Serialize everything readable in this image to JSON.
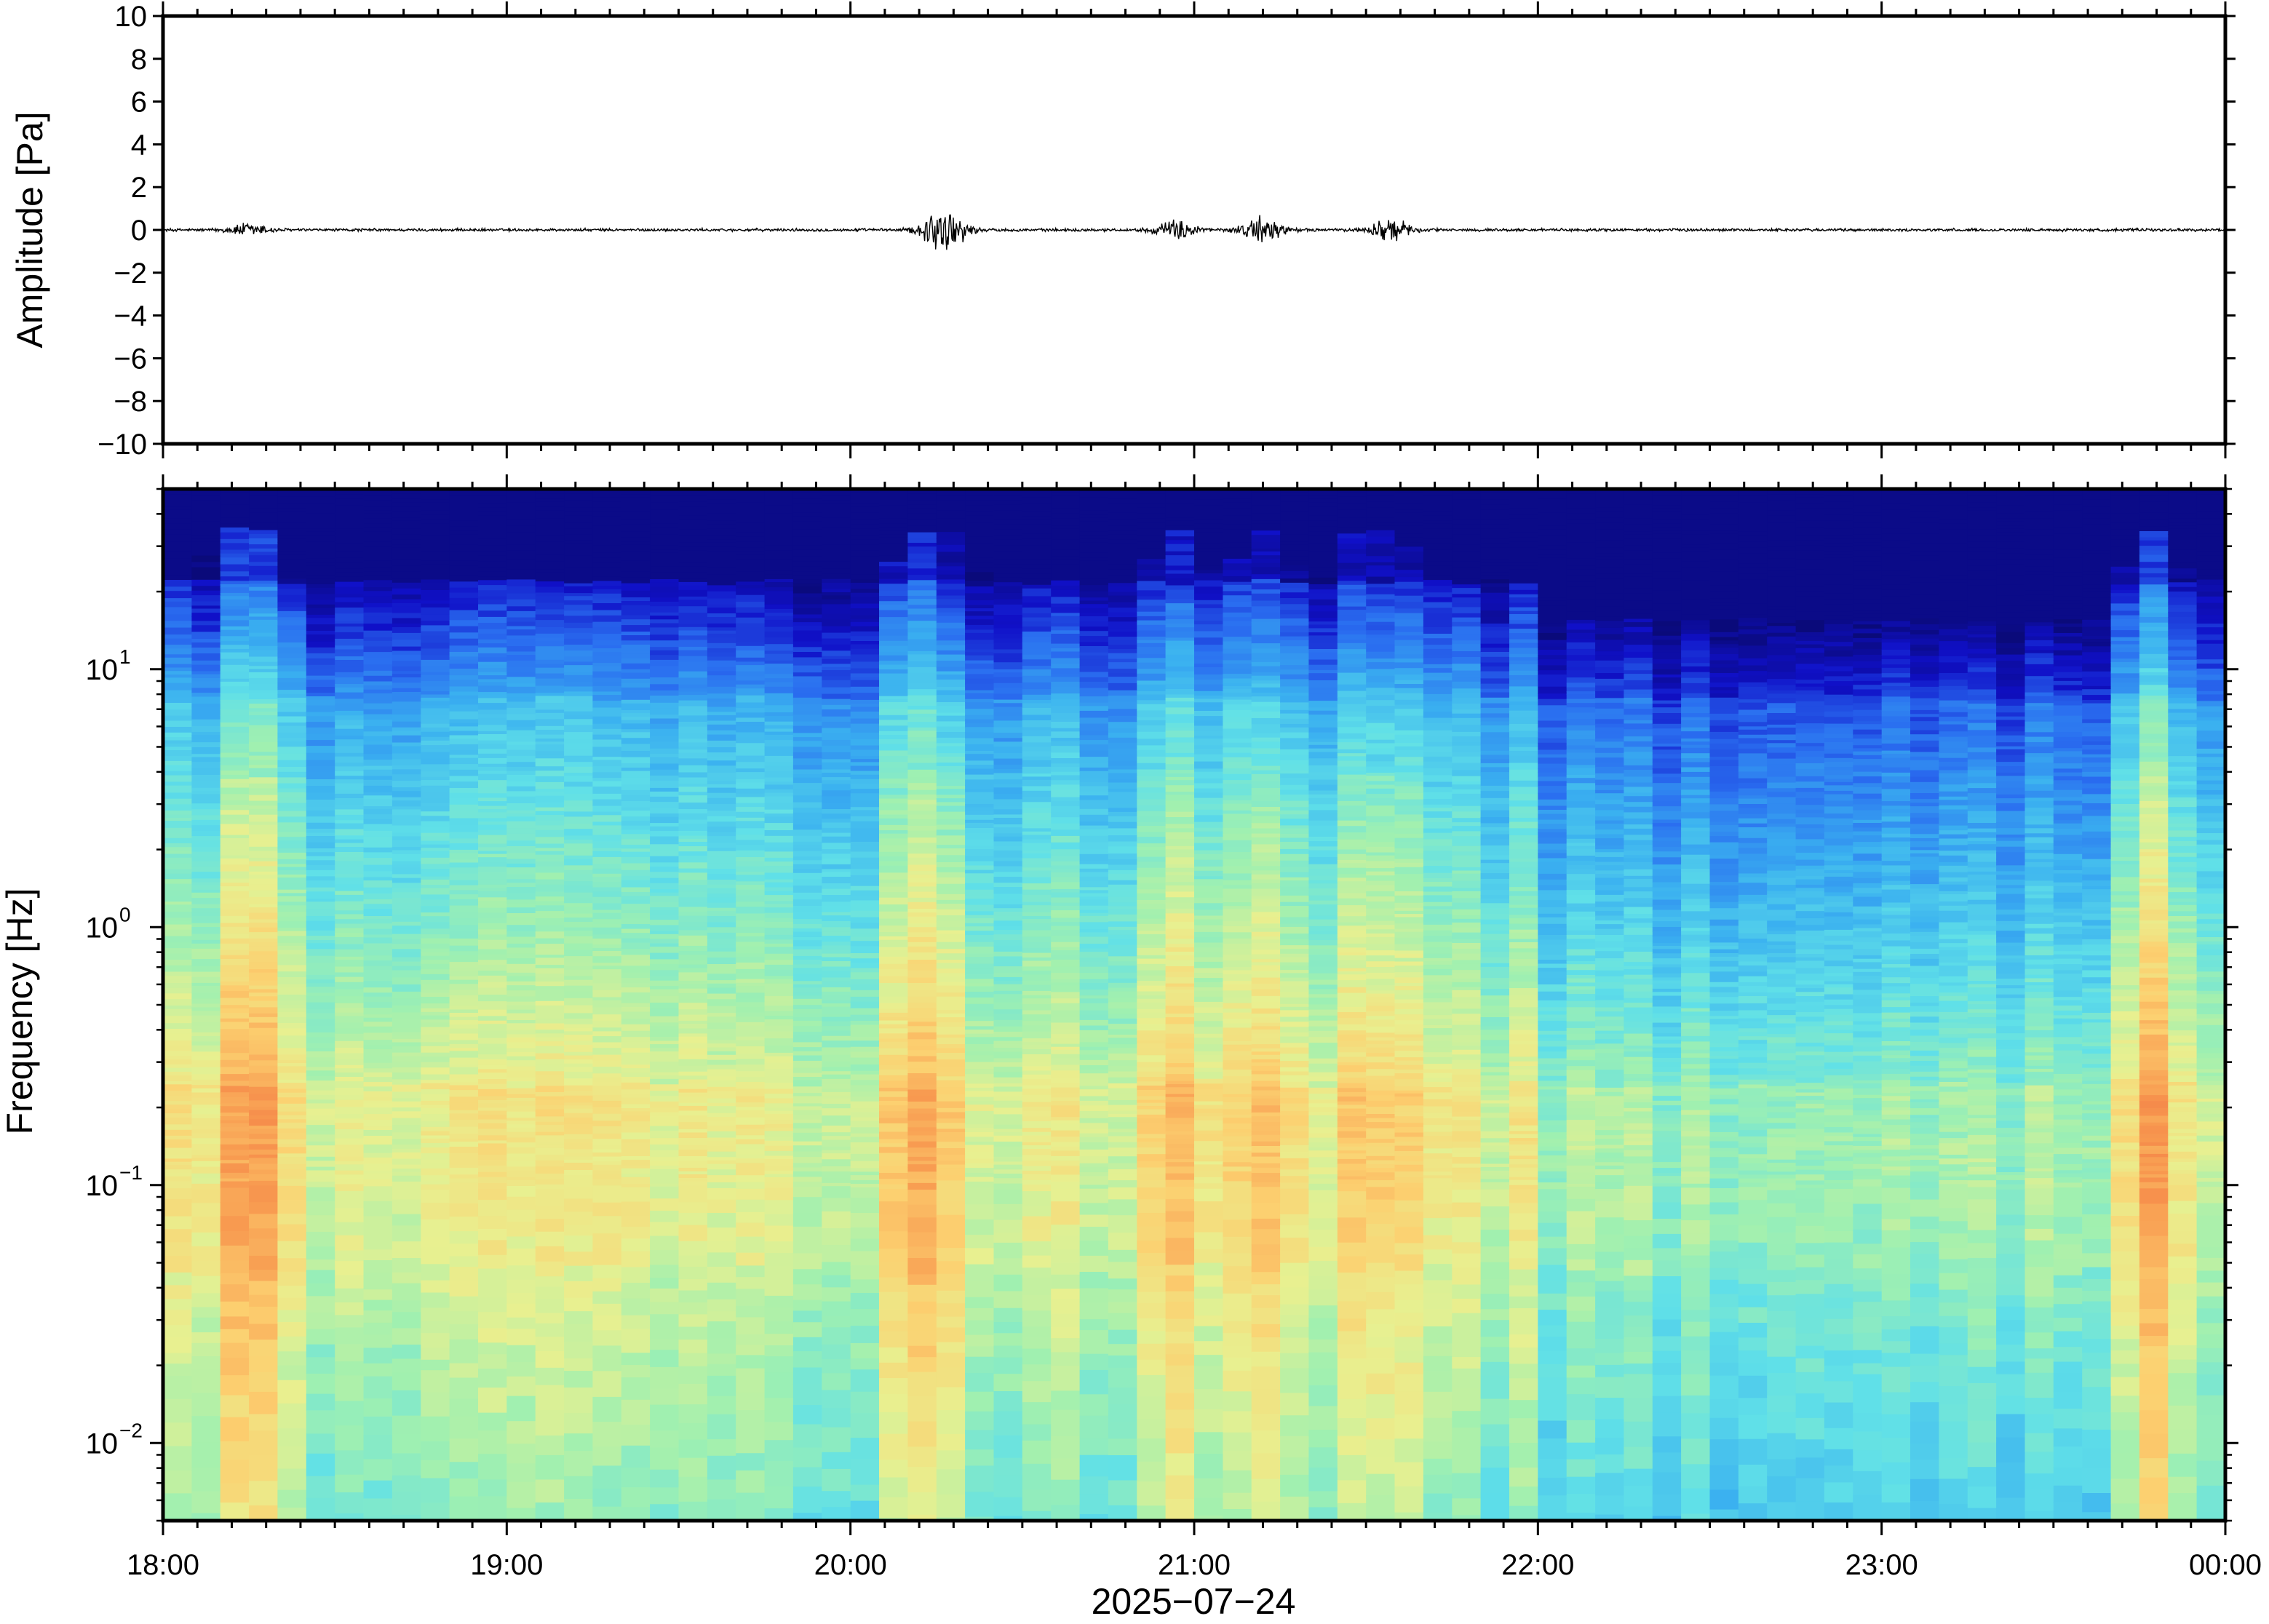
{
  "chart_data": [
    {
      "type": "line",
      "ylabel": "Amplitude [Pa]",
      "ylim": [
        -10,
        10
      ],
      "yticks": [
        10,
        8,
        6,
        4,
        2,
        0,
        -2,
        -4,
        -6,
        -8,
        -10
      ],
      "ytick_labels": [
        "10",
        "8",
        "6",
        "4",
        "2",
        "0",
        "−2",
        "−4",
        "−6",
        "−8",
        "−10"
      ],
      "xlim": [
        "18:00",
        "00:00"
      ],
      "series_color": "#000000",
      "bursts": [
        {
          "t_hours": 0.25,
          "peak": 0.35
        },
        {
          "t_hours": 2.27,
          "peak": 1.3
        },
        {
          "t_hours": 2.95,
          "peak": 0.5
        },
        {
          "t_hours": 3.2,
          "peak": 0.7
        },
        {
          "t_hours": 3.57,
          "peak": 0.6
        }
      ],
      "baseline_noise": 0.08
    },
    {
      "type": "heatmap",
      "ylabel": "Frequency [Hz]",
      "yscale": "log",
      "ylim": [
        0.005,
        50
      ],
      "ytick_labels": [
        {
          "base": "10",
          "exp": "1",
          "value": 10
        },
        {
          "base": "10",
          "exp": "0",
          "value": 1
        },
        {
          "base": "10",
          "exp": "−1",
          "value": 0.1
        },
        {
          "base": "10",
          "exp": "−2",
          "value": 0.01
        }
      ],
      "xlabel": "2025−07−24",
      "xtick_labels": [
        "18:00",
        "19:00",
        "20:00",
        "21:00",
        "22:00",
        "23:00",
        "00:00"
      ],
      "colormap": [
        "#0a0a7a",
        "#1010c8",
        "#2a6ef0",
        "#3ab0f0",
        "#60e0e8",
        "#a0f0b0",
        "#e8f090",
        "#fcd070",
        "#f89a50",
        "#f06a40"
      ],
      "energetic_columns_hours": [
        0.2,
        0.25,
        2.2,
        2.27,
        2.95,
        3.2,
        3.5,
        3.57,
        5.8
      ]
    }
  ]
}
